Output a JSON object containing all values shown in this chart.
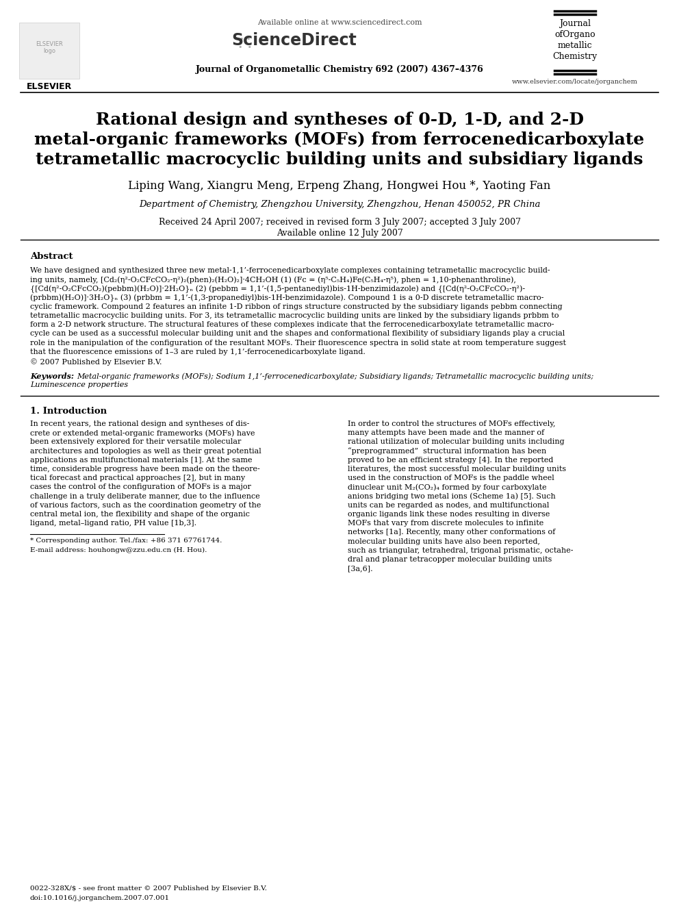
{
  "bg_color": "#ffffff",
  "header": {
    "available_online": "Available online at www.sciencedirect.com",
    "journal_name": "Journal of Organometallic Chemistry 692 (2007) 4367–4376",
    "website": "www.elsevier.com/locate/jorganchem",
    "elsevier_text": "ELSEVIER"
  },
  "title": {
    "line1": "Rational design and syntheses of 0-D, 1-D, and 2-D",
    "line2": "metal-organic frameworks (MOFs) from ferrocenedicarboxylate",
    "line3": "tetrametallic macrocyclic building units and subsidiary ligands"
  },
  "authors": "Liping Wang, Xiangru Meng, Erpeng Zhang, Hongwei Hou *, Yaoting Fan",
  "affiliation": "Department of Chemistry, Zhengzhou University, Zhengzhou, Henan 450052, PR China",
  "received": "Received 24 April 2007; received in revised form 3 July 2007; accepted 3 July 2007",
  "available": "Available online 12 July 2007",
  "abstract_title": "Abstract",
  "abstract_text": "We have designed and synthesized three new metal-1,1’-ferrocenedicarboxylate complexes containing tetrametallic macrocyclic build-\ning units, namely, [Cd₂(η²-O₂CFcCO₂-η²)₂(phen)₂(H₂O)₂]·4CH₂OH (1) (Fc = (η⁵-C₅H₄)Fe(C₅H₄-η⁵), phen = 1,10-phenanthroline),\n{[Cd(η²-O₂CFcCO₂)(pebbm)(H₂O)]·2H₂O}ₙ (2) (pebbm = 1,1’-(1,5-pentanediyl)bis-1H-benzimidazole) and {[Cd(η²-O₂CFcCO₂-η²)-\n(prbbm)(H₂O)]·3H₂O}ₙ (3) (prbbm = 1,1’-(1,3-propanediyl)bis-1H-benzimidazole). Compound 1 is a 0-D discrete tetrametallic macro-\ncyclic framework. Compound 2 features an infinite 1-D ribbon of rings structure constructed by the subsidiary ligands pebbm connecting\ntetrametallic macrocyclic building units. For 3, its tetrametallic macrocyclic building units are linked by the subsidiary ligands prbbm to\nform a 2-D network structure. The structural features of these complexes indicate that the ferrocenedicarboxylate tetrametallic macro-\ncycle can be used as a successful molecular building unit and the shapes and conformational flexibility of subsidiary ligands play a crucial\nrole in the manipulation of the configuration of the resultant MOFs. Their fluorescence spectra in solid state at room temperature suggest\nthat the fluorescence emissions of 1–3 are ruled by 1,1’-ferrocenedicarboxylate ligand.",
  "copyright": "© 2007 Published by Elsevier B.V.",
  "keywords_label": "Keywords:",
  "keywords_line1": "Metal-organic frameworks (MOFs); Sodium 1,1’-ferrocenedicarboxylate; Subsidiary ligands; Tetrametallic macrocyclic building units;",
  "keywords_line2": "Luminescence properties",
  "section1_title": "1. Introduction",
  "intro_left": [
    "In recent years, the rational design and syntheses of dis-",
    "crete or extended metal-organic frameworks (MOFs) have",
    "been extensively explored for their versatile molecular",
    "architectures and topologies as well as their great potential",
    "applications as multifunctional materials [1]. At the same",
    "time, considerable progress have been made on the theore-",
    "tical forecast and practical approaches [2], but in many",
    "cases the control of the configuration of MOFs is a major",
    "challenge in a truly deliberate manner, due to the influence",
    "of various factors, such as the coordination geometry of the",
    "central metal ion, the flexibility and shape of the organic",
    "ligand, metal–ligand ratio, PH value [1b,3]."
  ],
  "intro_right": [
    "In order to control the structures of MOFs effectively,",
    "many attempts have been made and the manner of",
    "rational utilization of molecular building units including",
    "“preprogrammed”  structural information has been",
    "proved to be an efficient strategy [4]. In the reported",
    "literatures, the most successful molecular building units",
    "used in the construction of MOFs is the paddle wheel",
    "dinuclear unit M₂(CO₂)₄ formed by four carboxylate",
    "anions bridging two metal ions (Scheme 1a) [5]. Such",
    "units can be regarded as nodes, and multifunctional",
    "organic ligands link these nodes resulting in diverse",
    "MOFs that vary from discrete molecules to infinite",
    "networks [1a]. Recently, many other conformations of",
    "molecular building units have also been reported,",
    "such as triangular, tetrahedral, trigonal prismatic, octahe-",
    "dral and planar tetracopper molecular building units",
    "[3a,6]."
  ],
  "footnote_star": "* Corresponding author. Tel./fax: +86 371 67761744.",
  "footnote_email": "E-mail address: houhongw@zzu.edu.cn (H. Hou).",
  "bottom_line1": "0022-328X/$ - see front matter © 2007 Published by Elsevier B.V.",
  "bottom_line2": "doi:10.1016/j.jorganchem.2007.07.001"
}
